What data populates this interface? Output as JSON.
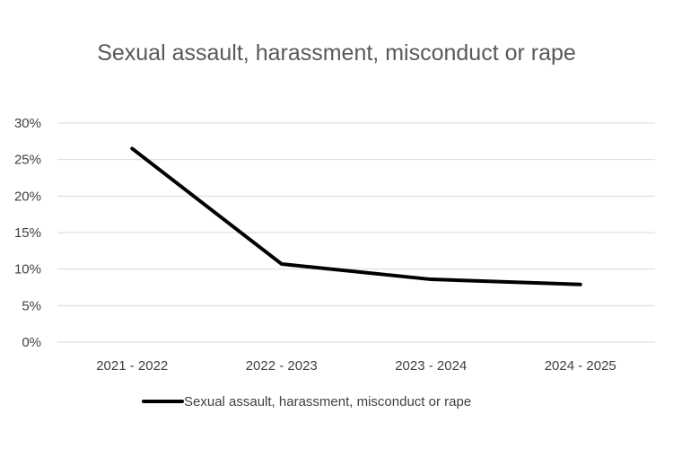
{
  "chart_data": {
    "type": "line",
    "title": "Sexual assault, harassment, misconduct or rape",
    "categories": [
      "2021 - 2022",
      "2022 - 2023",
      "2023 - 2024",
      "2024 - 2025"
    ],
    "series": [
      {
        "name": "Sexual assault, harassment, misconduct or rape",
        "values": [
          0.265,
          0.107,
          0.086,
          0.079
        ],
        "color": "#000000"
      }
    ],
    "ylim": [
      0,
      0.3
    ],
    "yticks": [
      {
        "value": 0.0,
        "label": "0%"
      },
      {
        "value": 0.05,
        "label": "5%"
      },
      {
        "value": 0.1,
        "label": "10%"
      },
      {
        "value": 0.15,
        "label": "15%"
      },
      {
        "value": 0.2,
        "label": "20%"
      },
      {
        "value": 0.25,
        "label": "25%"
      },
      {
        "value": 0.3,
        "label": "30%"
      }
    ],
    "grid": true,
    "gridColor": "#d9d9d9",
    "legend": "bottom"
  }
}
